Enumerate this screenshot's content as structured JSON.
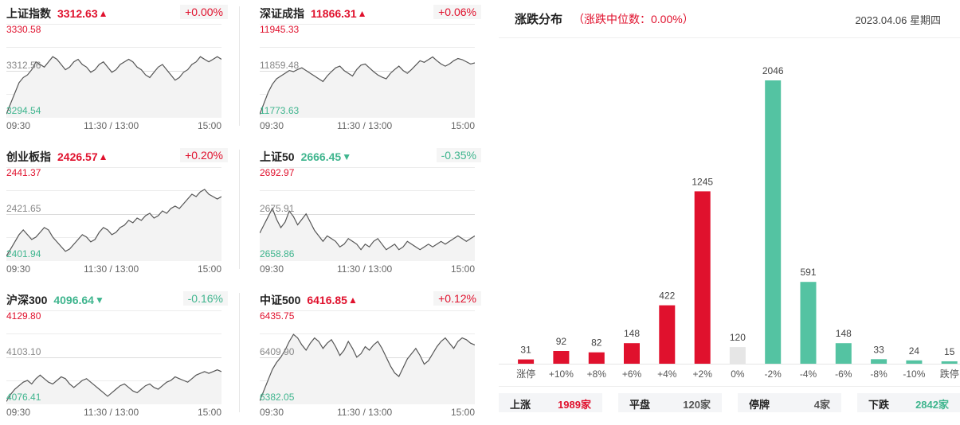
{
  "indices": [
    {
      "name": "上证指数",
      "value": "3312.63",
      "arrow": "▲",
      "dir": "up",
      "pct": "+0.00%",
      "high": "3330.58",
      "mid": "3312.56",
      "low": "3294.54",
      "t_start": "09:30",
      "t_mid": "11:30 / 13:00",
      "t_end": "15:00",
      "series": [
        3296,
        3300,
        3304,
        3308,
        3310,
        3311,
        3313,
        3316,
        3315,
        3314,
        3316,
        3318,
        3317,
        3315,
        3313,
        3314,
        3316,
        3317,
        3315,
        3314,
        3312,
        3313,
        3315,
        3316,
        3314,
        3312,
        3313,
        3315,
        3316,
        3317,
        3316,
        3314,
        3313,
        3311,
        3310,
        3312,
        3314,
        3315,
        3313,
        3311,
        3309,
        3310,
        3312,
        3313,
        3315,
        3316,
        3318,
        3317,
        3316,
        3317,
        3318,
        3317
      ]
    },
    {
      "name": "深证成指",
      "value": "11866.31",
      "arrow": "▲",
      "dir": "up",
      "pct": "+0.06%",
      "high": "11945.33",
      "mid": "11859.48",
      "low": "11773.63",
      "t_start": "09:30",
      "t_mid": "11:30 / 13:00",
      "t_end": "15:00",
      "series": [
        11780,
        11800,
        11820,
        11835,
        11845,
        11850,
        11855,
        11860,
        11858,
        11862,
        11865,
        11860,
        11855,
        11850,
        11845,
        11840,
        11850,
        11858,
        11865,
        11868,
        11860,
        11855,
        11850,
        11862,
        11870,
        11872,
        11865,
        11858,
        11852,
        11848,
        11845,
        11855,
        11862,
        11868,
        11860,
        11855,
        11862,
        11870,
        11878,
        11875,
        11880,
        11885,
        11878,
        11872,
        11868,
        11872,
        11878,
        11882,
        11880,
        11876,
        11872,
        11874
      ]
    },
    {
      "name": "创业板指",
      "value": "2426.57",
      "arrow": "▲",
      "dir": "up",
      "pct": "+0.20%",
      "high": "2441.37",
      "mid": "2421.65",
      "low": "2401.94",
      "t_start": "09:30",
      "t_mid": "11:30 / 13:00",
      "t_end": "15:00",
      "series": [
        2404,
        2407,
        2410,
        2413,
        2415,
        2413,
        2411,
        2412,
        2414,
        2416,
        2415,
        2412,
        2410,
        2408,
        2406,
        2407,
        2409,
        2411,
        2413,
        2412,
        2410,
        2411,
        2414,
        2416,
        2415,
        2413,
        2414,
        2416,
        2417,
        2419,
        2418,
        2420,
        2419,
        2421,
        2422,
        2420,
        2421,
        2423,
        2422,
        2424,
        2425,
        2424,
        2426,
        2428,
        2430,
        2429,
        2431,
        2432,
        2430,
        2429,
        2428,
        2429
      ]
    },
    {
      "name": "上证50",
      "value": "2666.45",
      "arrow": "▼",
      "dir": "down",
      "pct": "-0.35%",
      "high": "2692.97",
      "mid": "2675.91",
      "low": "2658.86",
      "t_start": "09:30",
      "t_mid": "11:30 / 13:00",
      "t_end": "15:00",
      "series": [
        2669,
        2672,
        2675,
        2678,
        2674,
        2671,
        2673,
        2677,
        2675,
        2672,
        2674,
        2676,
        2673,
        2670,
        2668,
        2666,
        2668,
        2667,
        2666,
        2664,
        2665,
        2667,
        2666,
        2665,
        2663,
        2665,
        2664,
        2666,
        2667,
        2665,
        2663,
        2664,
        2665,
        2663,
        2664,
        2666,
        2665,
        2664,
        2663,
        2664,
        2665,
        2664,
        2665,
        2666,
        2665,
        2666,
        2667,
        2668,
        2667,
        2666,
        2667,
        2668
      ]
    },
    {
      "name": "沪深300",
      "value": "4096.64",
      "arrow": "▼",
      "dir": "down",
      "pct": "-0.16%",
      "high": "4129.80",
      "mid": "4103.10",
      "low": "4076.41",
      "t_start": "09:30",
      "t_mid": "11:30 / 13:00",
      "t_end": "15:00",
      "series": [
        4078,
        4082,
        4085,
        4087,
        4089,
        4090,
        4088,
        4091,
        4093,
        4091,
        4089,
        4088,
        4090,
        4092,
        4091,
        4088,
        4086,
        4088,
        4090,
        4091,
        4089,
        4087,
        4085,
        4083,
        4081,
        4083,
        4085,
        4087,
        4088,
        4086,
        4084,
        4083,
        4085,
        4087,
        4088,
        4086,
        4085,
        4087,
        4089,
        4090,
        4092,
        4091,
        4090,
        4089,
        4091,
        4093,
        4094,
        4095,
        4094,
        4095,
        4096,
        4095
      ]
    },
    {
      "name": "中证500",
      "value": "6416.85",
      "arrow": "▲",
      "dir": "up",
      "pct": "+0.12%",
      "high": "6435.75",
      "mid": "6409.90",
      "low": "6382.05",
      "t_start": "09:30",
      "t_mid": "11:30 / 13:00",
      "t_end": "15:00",
      "series": [
        6384,
        6390,
        6396,
        6402,
        6406,
        6409,
        6413,
        6418,
        6422,
        6420,
        6416,
        6413,
        6417,
        6420,
        6418,
        6414,
        6417,
        6419,
        6415,
        6410,
        6413,
        6418,
        6414,
        6409,
        6411,
        6415,
        6413,
        6416,
        6418,
        6414,
        6409,
        6404,
        6400,
        6398,
        6403,
        6408,
        6411,
        6414,
        6410,
        6405,
        6407,
        6411,
        6415,
        6418,
        6420,
        6417,
        6414,
        6418,
        6420,
        6419,
        6417,
        6416
      ]
    }
  ],
  "distribution": {
    "title": "涨跌分布",
    "subtitle": "（涨跌中位数：0.00%）",
    "date": "2023.04.06 星期四"
  },
  "chart_data": {
    "type": "bar",
    "categories": [
      "涨停",
      "+10%",
      "+8%",
      "+6%",
      "+4%",
      "+2%",
      "0%",
      "-2%",
      "-4%",
      "-6%",
      "-8%",
      "-10%",
      "跌停"
    ],
    "values": [
      31,
      92,
      82,
      148,
      422,
      1245,
      120,
      2046,
      591,
      148,
      33,
      24,
      15
    ],
    "bar_colors": [
      "#e0112d",
      "#e0112d",
      "#e0112d",
      "#e0112d",
      "#e0112d",
      "#e0112d",
      "#e6e6e6",
      "#54c3a2",
      "#54c3a2",
      "#54c3a2",
      "#54c3a2",
      "#54c3a2",
      "#54c3a2"
    ],
    "ylim": [
      0,
      2046
    ]
  },
  "summary": [
    {
      "label": "上涨",
      "value": "1989",
      "unit": "家",
      "kind": "up"
    },
    {
      "label": "平盘",
      "value": "120",
      "unit": "家",
      "kind": "neutral"
    },
    {
      "label": "停牌",
      "value": "4",
      "unit": "家",
      "kind": "neutral"
    },
    {
      "label": "下跌",
      "value": "2842",
      "unit": "家",
      "kind": "down"
    }
  ],
  "colors": {
    "up": "#e0112d",
    "down": "#3fb58e",
    "flat": "#e6e6e6",
    "line": "#555555",
    "fill": "#f3f3f3"
  }
}
